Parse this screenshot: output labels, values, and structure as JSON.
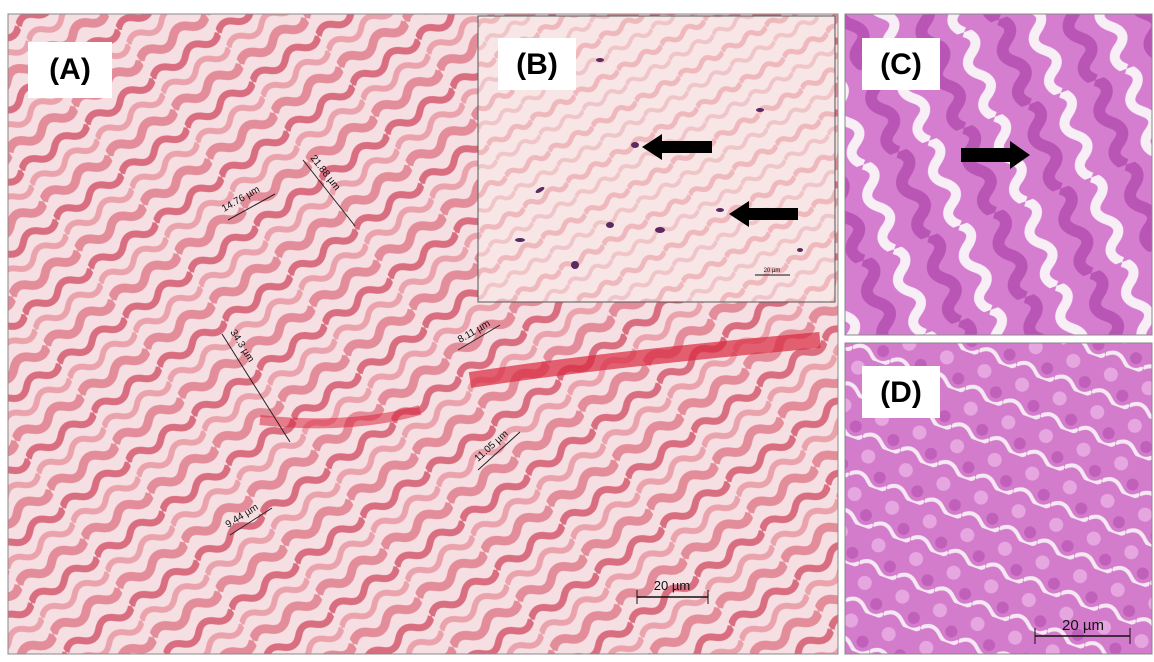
{
  "panels": [
    {
      "label": "(A)",
      "measurements": [
        "14.76 µm",
        "21.88 µm",
        "34.3 µm",
        "8.11 µm",
        "11.05 µm",
        "9.44 µm"
      ],
      "scale_bar": "20 µm"
    },
    {
      "label": "(B)",
      "scale_bar": "20 µm"
    },
    {
      "label": "(C)"
    },
    {
      "label": "(D)",
      "scale_bar": "20 µm"
    }
  ]
}
